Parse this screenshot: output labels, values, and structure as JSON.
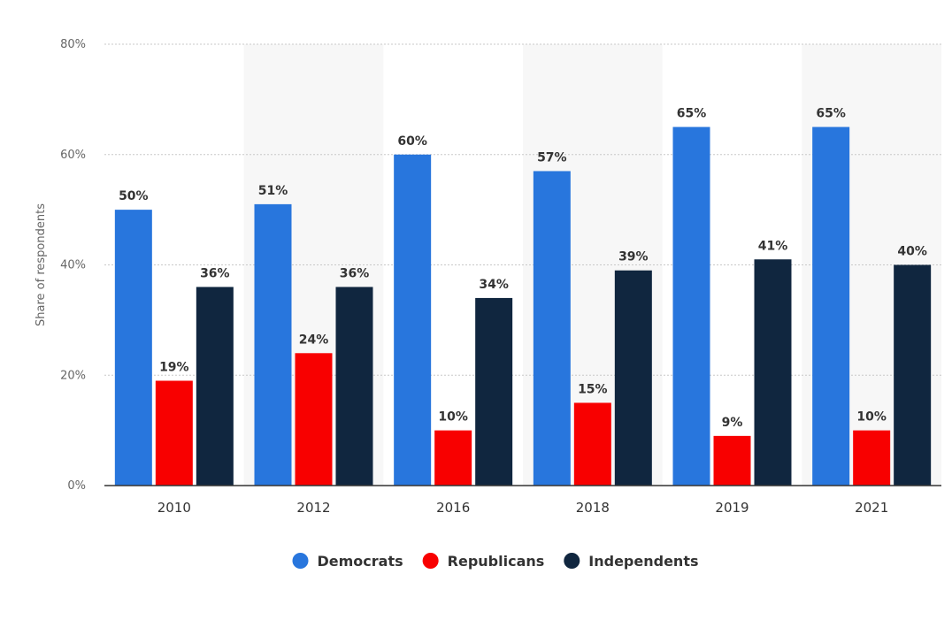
{
  "chart_data": {
    "type": "bar",
    "categories": [
      "2010",
      "2012",
      "2016",
      "2018",
      "2019",
      "2021"
    ],
    "series": [
      {
        "name": "Democrats",
        "color": "#2876dd",
        "values": [
          50,
          51,
          60,
          57,
          65,
          65
        ]
      },
      {
        "name": "Republicans",
        "color": "#f80000",
        "values": [
          19,
          24,
          10,
          15,
          9,
          10
        ]
      },
      {
        "name": "Independents",
        "color": "#10263f",
        "values": [
          36,
          36,
          34,
          39,
          41,
          40
        ]
      }
    ],
    "ylabel": "Share of respondents",
    "xlabel": "",
    "ylim": [
      0,
      80
    ],
    "yticks": [
      0,
      20,
      40,
      60,
      80
    ],
    "value_suffix": "%",
    "grid": true,
    "alternating_band_color": "#f7f7f7",
    "legend_position": "bottom-center"
  }
}
